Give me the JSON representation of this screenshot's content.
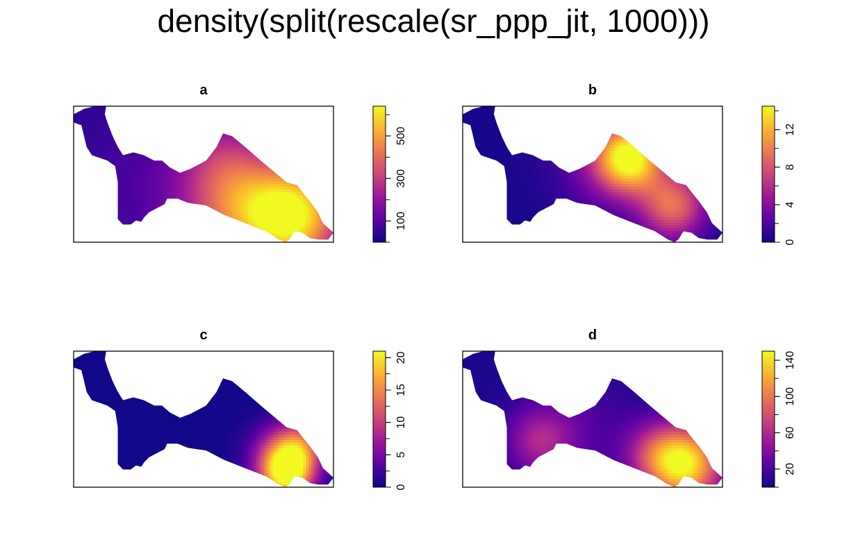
{
  "title": "density(split(rescale(sr_ppp_jit, 1000)))",
  "colors": {
    "palette": [
      "#0d0887",
      "#5b02a3",
      "#9a179b",
      "#cb4678",
      "#eb7852",
      "#fbb32f",
      "#f0f921"
    ],
    "background": "#ffffff",
    "frame": "#000000"
  },
  "chart_data": [
    {
      "type": "heatmap",
      "panel": "a",
      "title": "a",
      "legend_ticks": [
        100,
        300,
        500
      ],
      "legend_range": [
        0,
        640
      ],
      "hotspots": [
        {
          "x": 0.84,
          "y": 0.8,
          "intensity": 640,
          "spread": 0.13
        },
        {
          "x": 0.62,
          "y": 0.8,
          "intensity": 300,
          "spread": 0.14
        },
        {
          "x": 0.59,
          "y": 0.42,
          "intensity": 210,
          "spread": 0.12
        },
        {
          "x": 0.35,
          "y": 0.55,
          "intensity": 90,
          "spread": 0.25
        }
      ],
      "base_value": 30
    },
    {
      "type": "heatmap",
      "panel": "b",
      "title": "b",
      "legend_ticks": [
        0,
        4,
        8,
        12
      ],
      "legend_range": [
        0,
        14.5
      ],
      "hotspots": [
        {
          "x": 0.64,
          "y": 0.38,
          "intensity": 14,
          "spread": 0.09
        },
        {
          "x": 0.81,
          "y": 0.73,
          "intensity": 9,
          "spread": 0.09
        },
        {
          "x": 0.55,
          "y": 0.4,
          "intensity": 3,
          "spread": 0.15
        }
      ],
      "base_value": 0.3
    },
    {
      "type": "heatmap",
      "panel": "c",
      "title": "c",
      "legend_ticks": [
        0,
        5,
        10,
        15,
        20
      ],
      "legend_range": [
        0,
        21
      ],
      "hotspots": [
        {
          "x": 0.82,
          "y": 0.9,
          "intensity": 21,
          "spread": 0.07
        },
        {
          "x": 0.87,
          "y": 0.7,
          "intensity": 11,
          "spread": 0.07
        },
        {
          "x": 0.78,
          "y": 0.75,
          "intensity": 6,
          "spread": 0.08
        }
      ],
      "base_value": 0.2
    },
    {
      "type": "heatmap",
      "panel": "d",
      "title": "d",
      "legend_ticks": [
        20,
        60,
        100,
        140
      ],
      "legend_range": [
        0,
        150
      ],
      "hotspots": [
        {
          "x": 0.85,
          "y": 0.83,
          "intensity": 150,
          "spread": 0.1
        },
        {
          "x": 0.73,
          "y": 0.75,
          "intensity": 40,
          "spread": 0.08
        },
        {
          "x": 0.3,
          "y": 0.66,
          "intensity": 55,
          "spread": 0.09
        },
        {
          "x": 0.47,
          "y": 0.55,
          "intensity": 20,
          "spread": 0.15
        }
      ],
      "base_value": 5
    }
  ]
}
